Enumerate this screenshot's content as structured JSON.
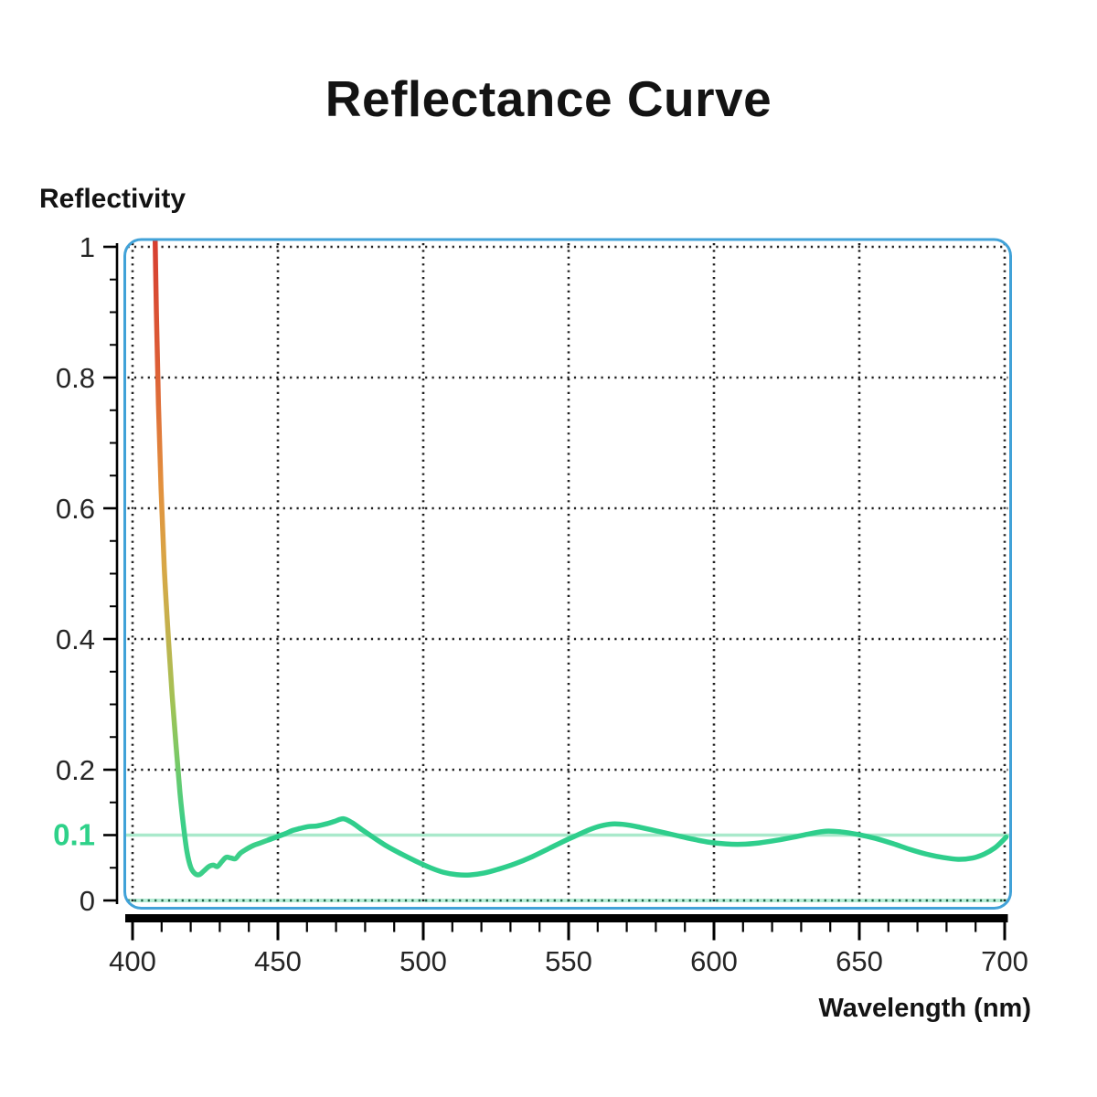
{
  "chart_data": {
    "type": "line",
    "title": "Reflectance Curve",
    "ylabel": "Reflectivity",
    "xlabel": "Wavelength (nm)",
    "xlim": [
      400,
      700
    ],
    "ylim": [
      0,
      1
    ],
    "grid": true,
    "legend": null,
    "x_ticks_major": [
      400,
      450,
      500,
      550,
      600,
      650,
      700
    ],
    "x_tick_labels": [
      "400",
      "450",
      "500",
      "550",
      "600",
      "650",
      "700"
    ],
    "x_minor_step": 10,
    "y_minor_step": 0.05,
    "y_ticks": [
      {
        "value": 0,
        "label": "0",
        "highlight": false
      },
      {
        "value": 0.1,
        "label": "0.1",
        "highlight": true
      },
      {
        "value": 0.2,
        "label": "0.2",
        "highlight": false
      },
      {
        "value": 0.4,
        "label": "0.4",
        "highlight": false
      },
      {
        "value": 0.6,
        "label": "0.6",
        "highlight": false
      },
      {
        "value": 0.8,
        "label": "0.8",
        "highlight": false
      },
      {
        "value": 1,
        "label": "1",
        "highlight": false
      }
    ],
    "x_gridlines": [
      400,
      450,
      500,
      550,
      600,
      650,
      700
    ],
    "y_gridlines": [
      0,
      0.2,
      0.4,
      0.6,
      0.8,
      1
    ],
    "reference_lines": [
      {
        "y": 0.1,
        "color": "#a9e9cb",
        "width": 3.5
      },
      {
        "y": 0,
        "color": "#b4edd5",
        "width": 4
      }
    ],
    "colors": {
      "plot_border": "#41a2d8",
      "grid": "#1f1f1f",
      "zero_grid": "#1f5f46",
      "axis": "#000000",
      "tick_label": "#262626",
      "highlight_tick": "#2ed189",
      "curve": "#2fce8c"
    },
    "series": [
      {
        "name": "reflectance",
        "color": "#2fce8c",
        "gradient_head": {
          "end_y_value": 0.12,
          "stops": [
            {
              "offset": 0.0,
              "color": "#d63e31"
            },
            {
              "offset": 0.22,
              "color": "#dd5f36"
            },
            {
              "offset": 0.42,
              "color": "#e2903e"
            },
            {
              "offset": 0.56,
              "color": "#d8a746"
            },
            {
              "offset": 0.68,
              "color": "#c2b24e"
            },
            {
              "offset": 0.8,
              "color": "#a0c356"
            },
            {
              "offset": 0.9,
              "color": "#76c967"
            },
            {
              "offset": 1.0,
              "color": "#3bcf89"
            }
          ]
        },
        "points": [
          [
            407.6,
            1.06
          ],
          [
            408.2,
            0.9
          ],
          [
            408.9,
            0.76
          ],
          [
            409.8,
            0.63
          ],
          [
            410.9,
            0.51
          ],
          [
            412.2,
            0.41
          ],
          [
            413.6,
            0.315
          ],
          [
            415.0,
            0.235
          ],
          [
            416.3,
            0.165
          ],
          [
            417.5,
            0.115
          ],
          [
            418.7,
            0.075
          ],
          [
            420.0,
            0.051
          ],
          [
            421.5,
            0.041
          ],
          [
            423.0,
            0.0395
          ],
          [
            424.5,
            0.045
          ],
          [
            426.3,
            0.052
          ],
          [
            427.8,
            0.054
          ],
          [
            429.2,
            0.052
          ],
          [
            430.8,
            0.06
          ],
          [
            432.2,
            0.066
          ],
          [
            433.8,
            0.065
          ],
          [
            435.4,
            0.064
          ],
          [
            437.0,
            0.072
          ],
          [
            439.0,
            0.078
          ],
          [
            441.5,
            0.084
          ],
          [
            444.0,
            0.088
          ],
          [
            447.0,
            0.093
          ],
          [
            450.0,
            0.098
          ],
          [
            452.5,
            0.102
          ],
          [
            455.0,
            0.107
          ],
          [
            457.5,
            0.11
          ],
          [
            460.5,
            0.113
          ],
          [
            463.5,
            0.114
          ],
          [
            466.5,
            0.117
          ],
          [
            469.5,
            0.121
          ],
          [
            472.5,
            0.125
          ],
          [
            475.5,
            0.119
          ],
          [
            479.0,
            0.108
          ],
          [
            483.0,
            0.096
          ],
          [
            487.5,
            0.083
          ],
          [
            492.5,
            0.071
          ],
          [
            497.5,
            0.06
          ],
          [
            502.5,
            0.05
          ],
          [
            507.0,
            0.043
          ],
          [
            511.5,
            0.0395
          ],
          [
            516.0,
            0.039
          ],
          [
            521.0,
            0.042
          ],
          [
            526.0,
            0.048
          ],
          [
            531.5,
            0.056
          ],
          [
            537.5,
            0.067
          ],
          [
            543.5,
            0.08
          ],
          [
            549.0,
            0.092
          ],
          [
            553.0,
            0.1
          ],
          [
            557.0,
            0.108
          ],
          [
            561.0,
            0.114
          ],
          [
            565.0,
            0.117
          ],
          [
            569.5,
            0.116
          ],
          [
            574.5,
            0.112
          ],
          [
            580.5,
            0.106
          ],
          [
            586.5,
            0.1
          ],
          [
            592.5,
            0.094
          ],
          [
            598.5,
            0.089
          ],
          [
            604.0,
            0.0865
          ],
          [
            609.5,
            0.086
          ],
          [
            615.5,
            0.088
          ],
          [
            621.5,
            0.092
          ],
          [
            627.5,
            0.097
          ],
          [
            633.0,
            0.102
          ],
          [
            638.5,
            0.106
          ],
          [
            643.5,
            0.105
          ],
          [
            649.5,
            0.101
          ],
          [
            655.5,
            0.095
          ],
          [
            661.5,
            0.087
          ],
          [
            667.5,
            0.078
          ],
          [
            673.0,
            0.071
          ],
          [
            678.5,
            0.066
          ],
          [
            684.0,
            0.063
          ],
          [
            689.0,
            0.065
          ],
          [
            693.0,
            0.071
          ],
          [
            696.5,
            0.08
          ],
          [
            699.0,
            0.09
          ],
          [
            700.5,
            0.097
          ]
        ]
      }
    ]
  }
}
